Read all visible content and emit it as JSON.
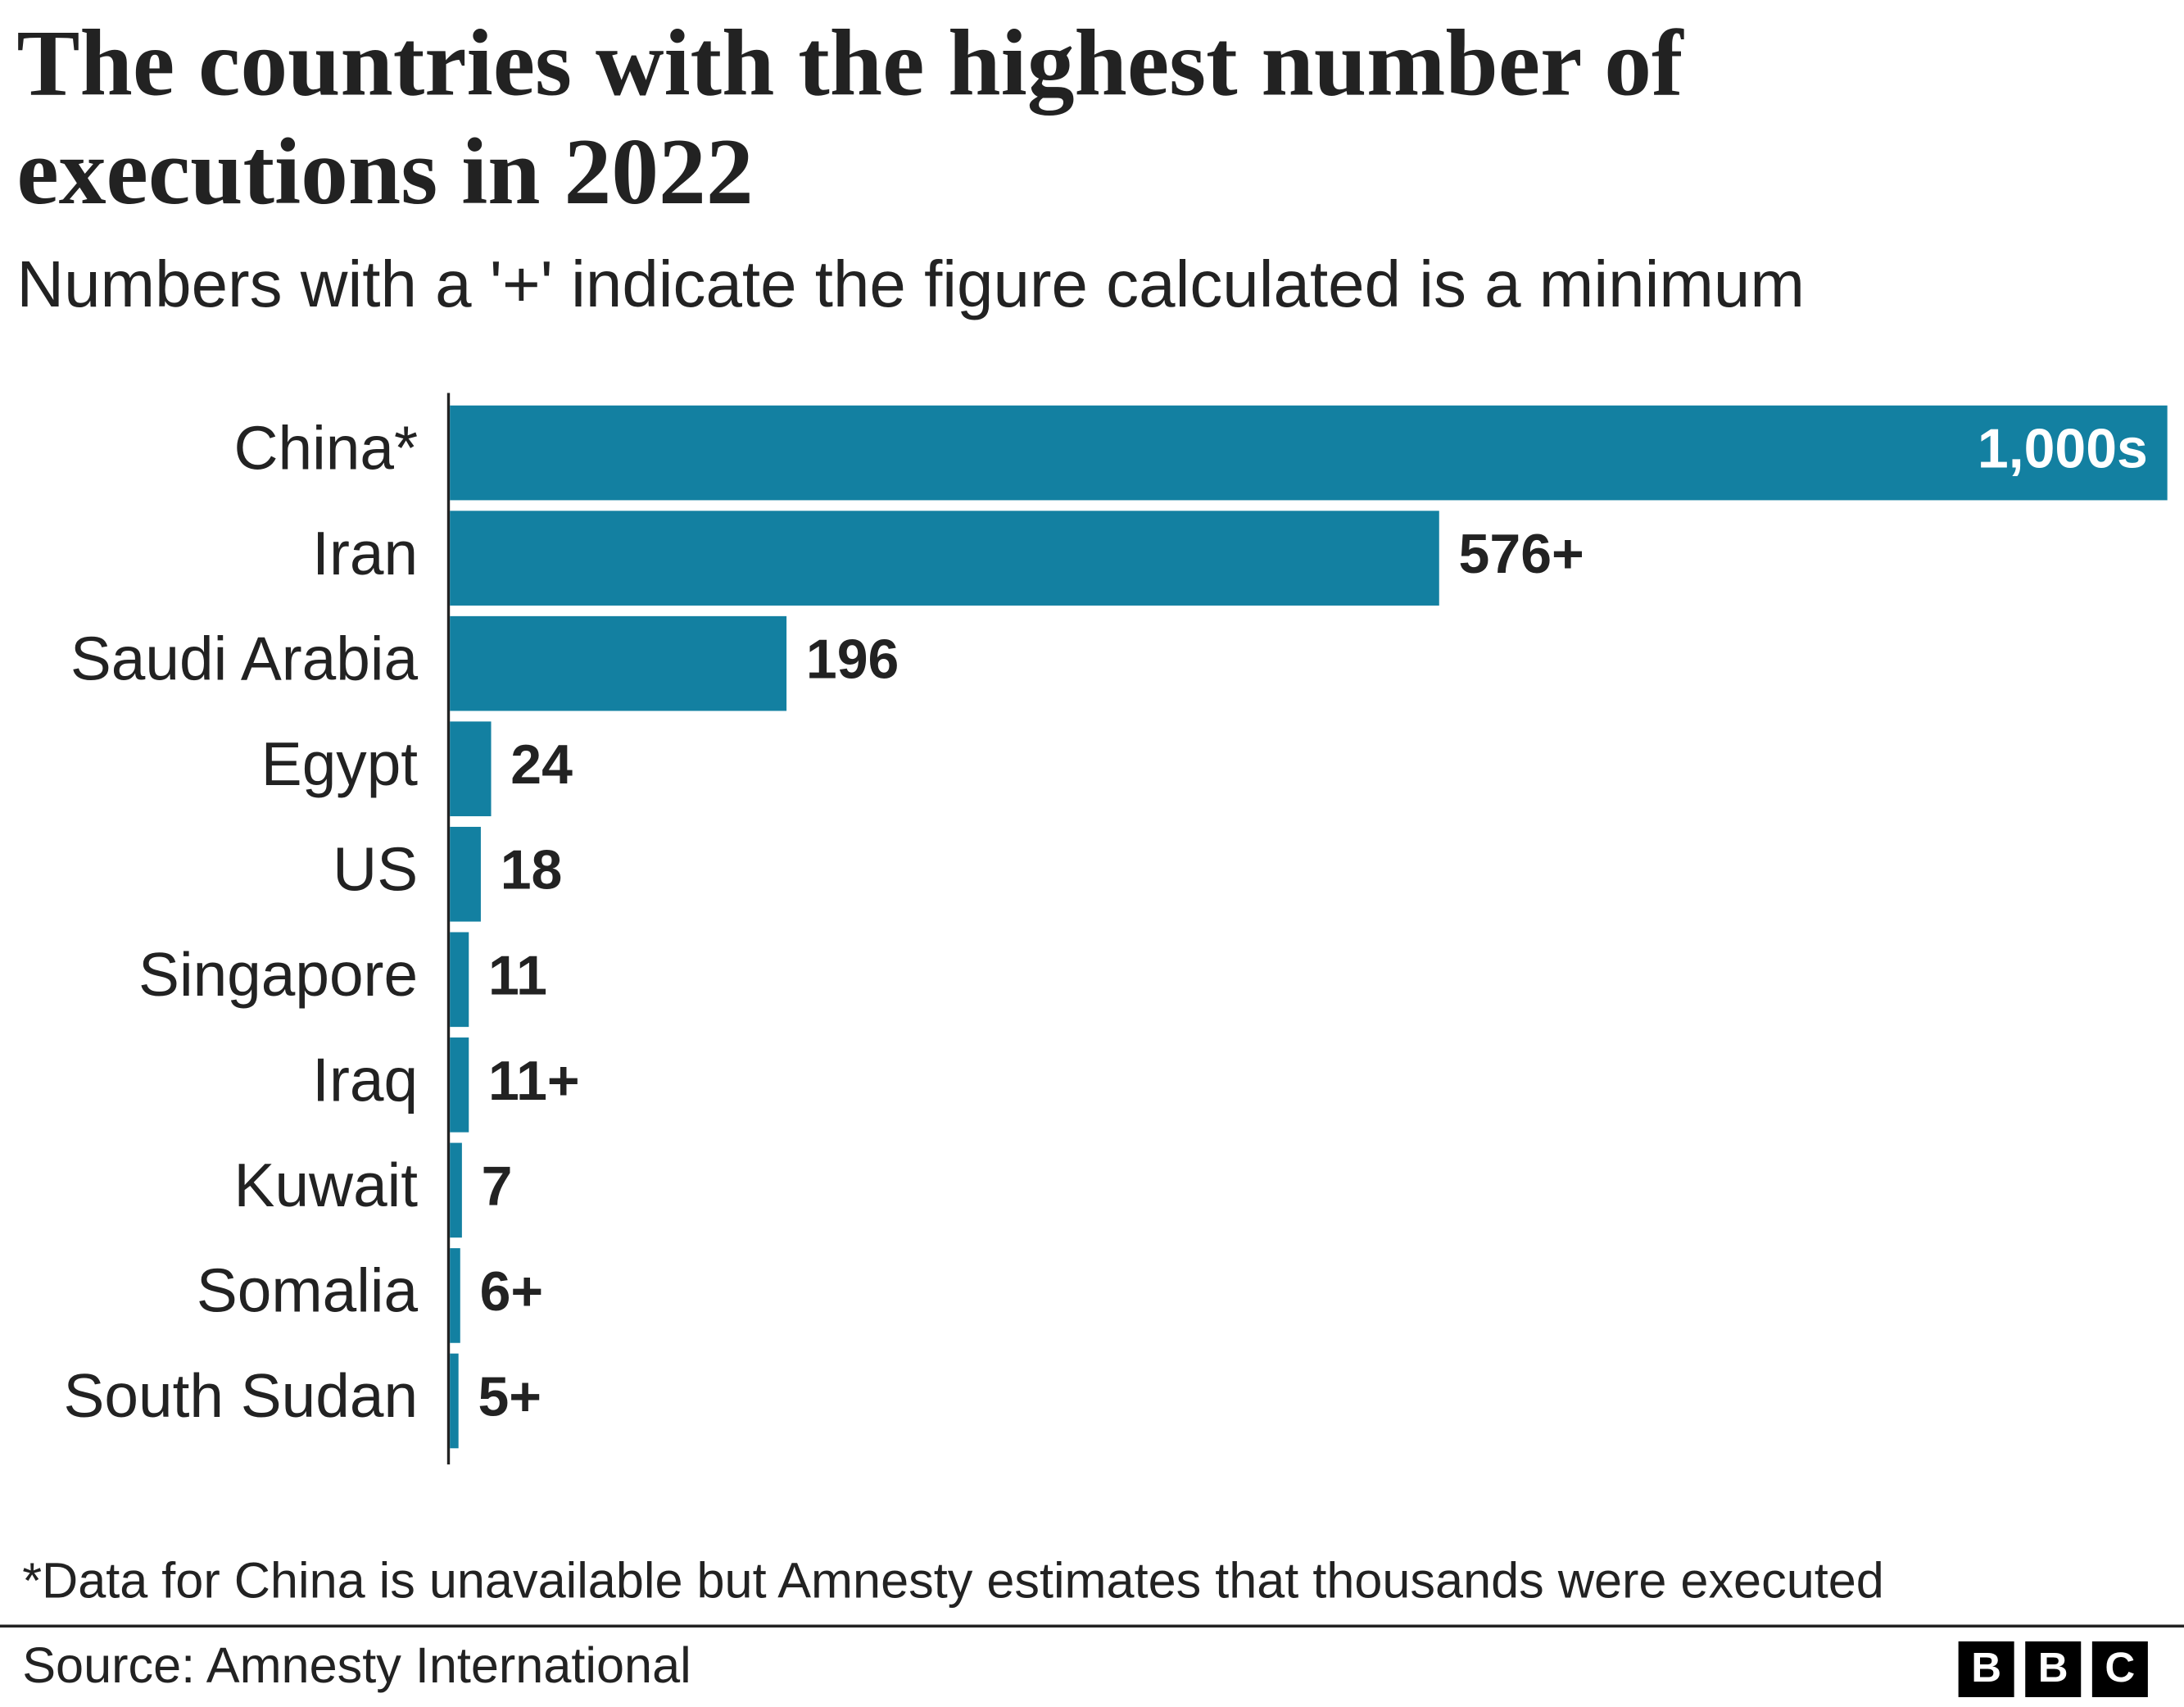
{
  "chart_data": {
    "type": "bar",
    "orientation": "horizontal",
    "title": "The countries with the highest number of executions in 2022",
    "subtitle": "Numbers with a '+' indicate the figure calculated is a minimum",
    "categories": [
      "China*",
      "Iran",
      "Saudi Arabia",
      "Egypt",
      "US",
      "Singapore",
      "Iraq",
      "Kuwait",
      "Somalia",
      "South Sudan"
    ],
    "values": [
      1000,
      576,
      196,
      24,
      18,
      11,
      11,
      7,
      6,
      5
    ],
    "value_labels": [
      "1,000s",
      "576+",
      "196",
      "24",
      "18",
      "11",
      "11+",
      "7",
      "6+",
      "5+"
    ],
    "color": "#1380a1",
    "footnote": "*Data for China is unavailable but Amnesty estimates that thousands were executed",
    "source": "Source: Amnesty International",
    "logo": [
      "B",
      "B",
      "C"
    ]
  }
}
